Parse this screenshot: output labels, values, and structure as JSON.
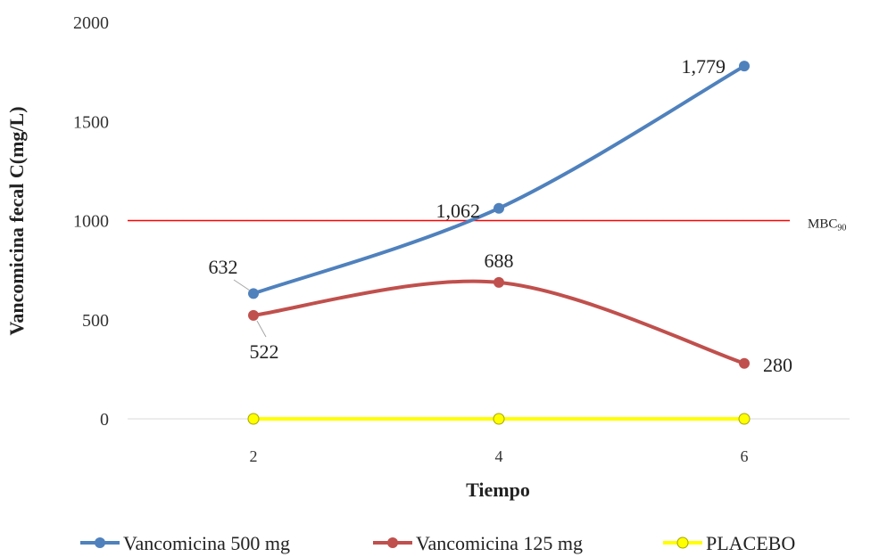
{
  "chart_data": {
    "type": "line",
    "xlabel": "Tiempo",
    "ylabel": "Vancomicina fecal C(mg/L)",
    "x": [
      2,
      4,
      6
    ],
    "ylim": [
      0,
      2000
    ],
    "yticks": [
      0,
      500,
      1000,
      1500,
      2000
    ],
    "series": [
      {
        "name": "Vancomicina 500 mg",
        "values": [
          632,
          1062,
          1779
        ],
        "labels": [
          "632",
          "1,062",
          "1,779"
        ],
        "color": "#4f81bd"
      },
      {
        "name": "Vancomicina 125 mg",
        "values": [
          522,
          688,
          280
        ],
        "labels": [
          "522",
          "688",
          "280"
        ],
        "color": "#c0504d"
      },
      {
        "name": "PLACEBO",
        "values": [
          0,
          0,
          0
        ],
        "labels": [],
        "color": "#ffff00"
      }
    ],
    "reference_line": {
      "value": 1000,
      "label_main": "MBC",
      "label_sub": "90",
      "color": "#ff0000"
    },
    "grid": false,
    "legend": "bottom"
  }
}
